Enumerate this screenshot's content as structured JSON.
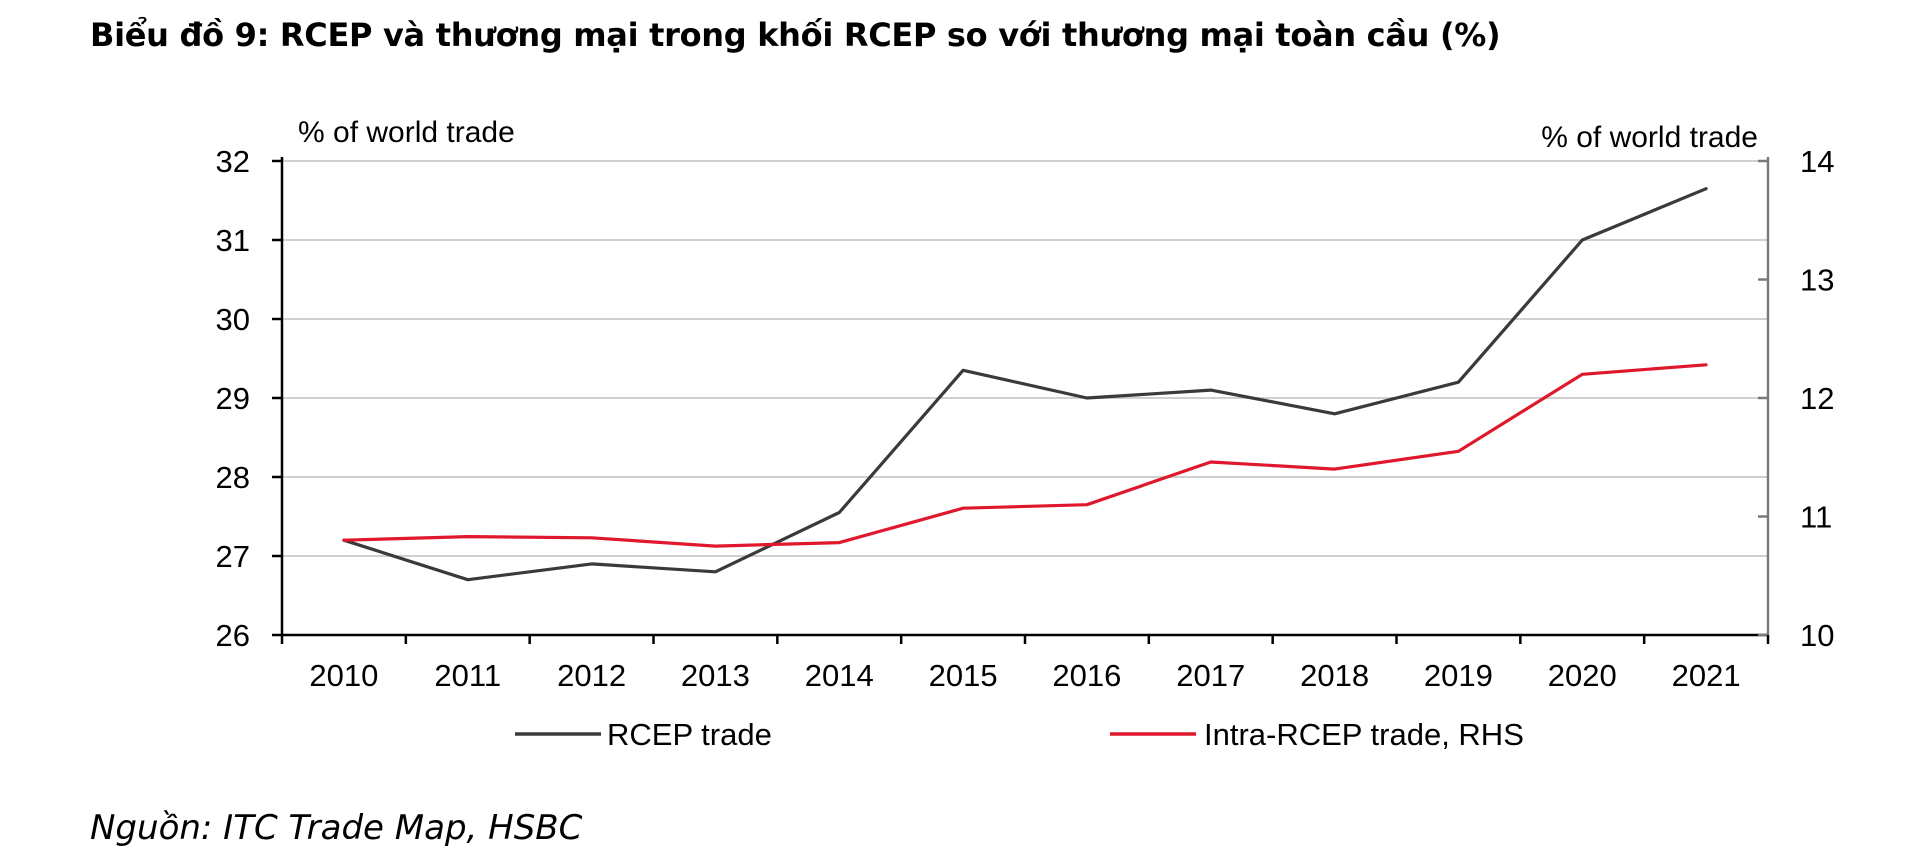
{
  "title": "Biểu đồ 9: RCEP và thương mại trong khối RCEP so với thương mại toàn cầu (%)",
  "source": "Nguồn: ITC Trade Map, HSBC",
  "chart_data": {
    "type": "line",
    "x": [
      "2010",
      "2011",
      "2012",
      "2013",
      "2014",
      "2015",
      "2016",
      "2017",
      "2018",
      "2019",
      "2020",
      "2021"
    ],
    "left_axis": {
      "label": "% of world trade",
      "ylim": [
        26,
        32
      ],
      "ticks": [
        "26",
        "27",
        "28",
        "29",
        "30",
        "31",
        "32"
      ]
    },
    "right_axis": {
      "label": "% of world trade",
      "ylim": [
        10,
        14
      ],
      "ticks": [
        "10",
        "11",
        "12",
        "13",
        "14"
      ]
    },
    "series": [
      {
        "name": "RCEP trade",
        "axis": "left",
        "color": "#3a3a3a",
        "values": [
          27.2,
          26.7,
          26.9,
          26.8,
          27.55,
          29.35,
          29.0,
          29.1,
          28.8,
          29.2,
          31.0,
          31.65
        ]
      },
      {
        "name": "Intra-RCEP trade, RHS",
        "axis": "right",
        "color": "#e0182d",
        "values": [
          10.8,
          10.83,
          10.82,
          10.75,
          10.78,
          11.07,
          11.1,
          11.46,
          11.4,
          11.55,
          12.2,
          12.28
        ]
      }
    ],
    "grid": true,
    "legend_position": "bottom"
  }
}
